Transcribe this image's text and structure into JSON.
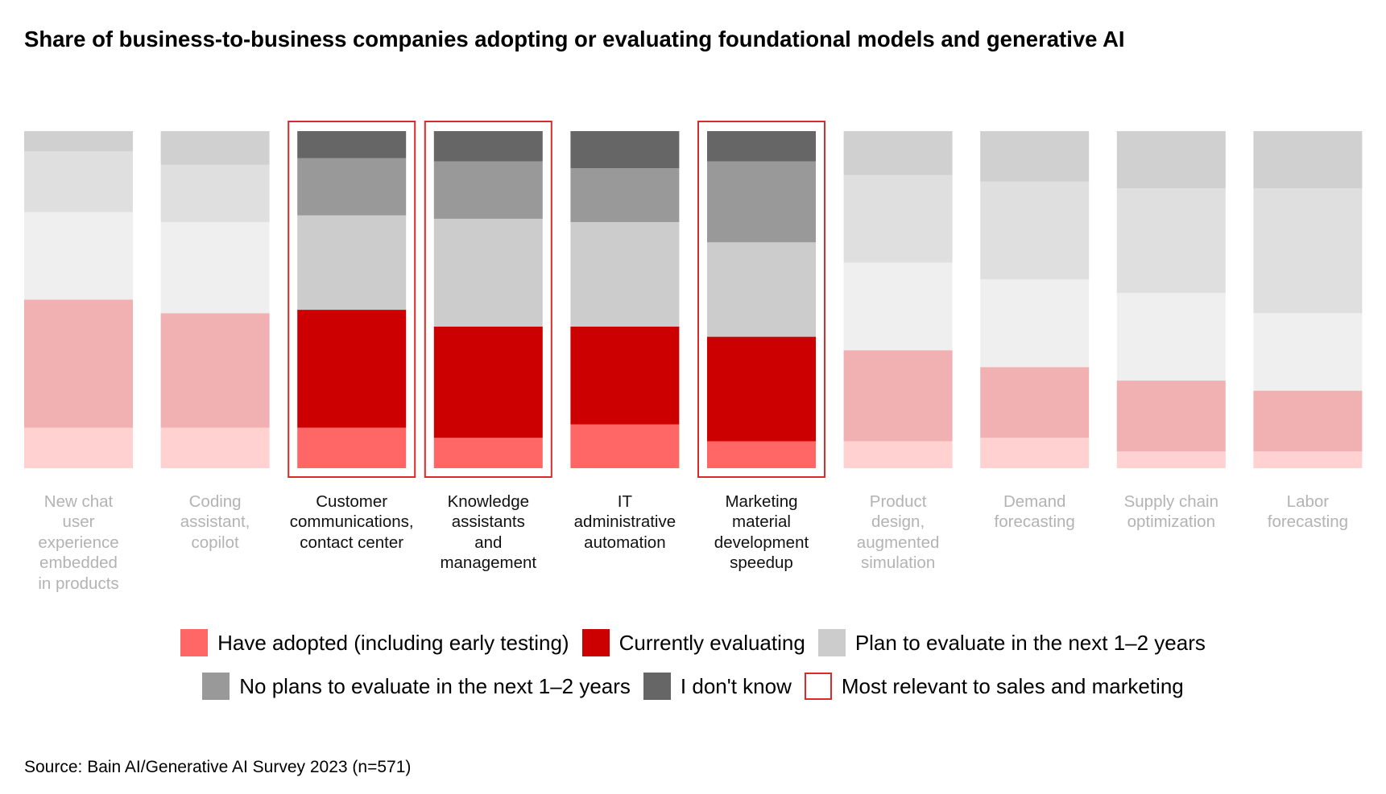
{
  "title": "Share of business-to-business companies adopting or evaluating foundational models and generative AI",
  "source": "Source: Bain AI/Generative AI Survey 2023 (n=571)",
  "colors": {
    "adopted": "#ff6666",
    "evaluating": "#cc0000",
    "plan": "#cccccc",
    "no_plans": "#999999",
    "dont_know": "#666666",
    "highlight_frame": "#d92b2b",
    "dim_adopted": "#ffd1d1",
    "dim_evaluating": "#f1b1b2",
    "dim_plan": "#efefef",
    "dim_no_plans": "#dfdfdf",
    "dim_dont_know": "#d0d0d0",
    "label_dim": "#b3b3b3"
  },
  "legend": [
    {
      "key": "adopted",
      "label": "Have adopted (including early testing)",
      "color": "#ff6666"
    },
    {
      "key": "evaluating",
      "label": "Currently evaluating",
      "color": "#cc0000"
    },
    {
      "key": "plan",
      "label": "Plan to evaluate in the next 1–2 years",
      "color": "#cccccc"
    },
    {
      "key": "no_plans",
      "label": "No plans to evaluate in the next 1–2 years",
      "color": "#999999"
    },
    {
      "key": "dont_know",
      "label": "I don't know",
      "color": "#666666"
    },
    {
      "key": "highlight",
      "label": "Most relevant to sales and marketing",
      "color": "#d92b2b",
      "outline": true
    }
  ],
  "chart_data": {
    "type": "bar",
    "stacked": true,
    "normalized_percent": true,
    "title": "Share of business-to-business companies adopting or evaluating foundational models and generative AI",
    "xlabel": "",
    "ylabel": "",
    "ylim": [
      0,
      100
    ],
    "grid": false,
    "legend_position": "bottom",
    "categories": [
      "New chat user experience embedded in products",
      "Coding assistant, copilot",
      "Customer communications, contact center",
      "Knowledge assistants and management",
      "IT administrative automation",
      "Marketing material development speedup",
      "Product design, augmented simulation",
      "Demand forecasting",
      "Supply chain optimization",
      "Labor forecasting"
    ],
    "category_label_lines": [
      [
        "New chat",
        "user",
        "experience",
        "embedded",
        "in products"
      ],
      [
        "Coding",
        "assistant,",
        "copilot"
      ],
      [
        "Customer",
        "communications,",
        "contact center"
      ],
      [
        "Knowledge",
        "assistants",
        "and",
        "management"
      ],
      [
        "IT",
        "administrative",
        "automation"
      ],
      [
        "Marketing",
        "material",
        "development",
        "speedup"
      ],
      [
        "Product",
        "design,",
        "augmented",
        "simulation"
      ],
      [
        "Demand",
        "forecasting"
      ],
      [
        "Supply chain",
        "optimization"
      ],
      [
        "Labor",
        "forecasting"
      ]
    ],
    "highlighted": [
      false,
      false,
      true,
      true,
      false,
      true,
      false,
      false,
      false,
      false
    ],
    "emphasized": [
      false,
      false,
      true,
      true,
      true,
      true,
      false,
      false,
      false,
      false
    ],
    "series": [
      {
        "name": "Have adopted (including early testing)",
        "key": "adopted",
        "values": [
          12,
          12,
          12,
          9,
          13,
          8,
          8,
          9,
          5,
          5
        ]
      },
      {
        "name": "Currently evaluating",
        "key": "evaluating",
        "values": [
          38,
          34,
          35,
          33,
          29,
          31,
          27,
          21,
          21,
          18
        ]
      },
      {
        "name": "Plan to evaluate in the next 1–2 years",
        "key": "plan",
        "values": [
          26,
          27,
          28,
          32,
          31,
          28,
          26,
          26,
          26,
          23
        ]
      },
      {
        "name": "No plans to evaluate in the next 1–2 years",
        "key": "no_plans",
        "values": [
          18,
          17,
          17,
          17,
          16,
          24,
          26,
          29,
          31,
          37
        ]
      },
      {
        "name": "I don't know",
        "key": "dont_know",
        "values": [
          6,
          10,
          8,
          9,
          11,
          9,
          13,
          15,
          17,
          17
        ]
      }
    ]
  }
}
